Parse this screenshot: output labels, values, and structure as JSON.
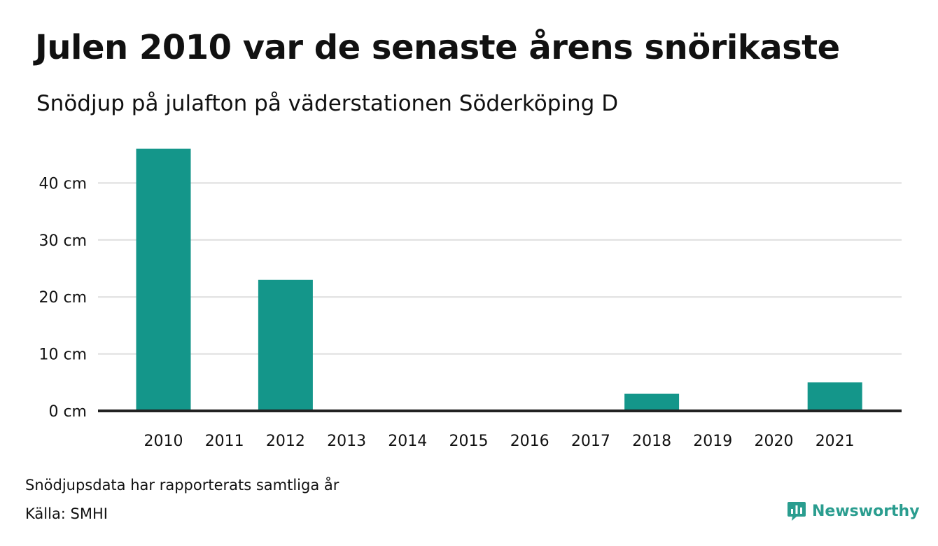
{
  "header": {
    "title": "Julen 2010 var de senaste årens snörikaste",
    "subtitle": "Snödjup på julafton på väderstationen Söderköping D"
  },
  "footer": {
    "note": "Snödjupsdata har rapporterats samtliga år",
    "source": "Källa: SMHI",
    "logo_text": "Newsworthy"
  },
  "colors": {
    "bar": "#14968a",
    "grid": "#dddddd",
    "baseline": "#222222",
    "logo": "#2a9d8f"
  },
  "chart_data": {
    "type": "bar",
    "categories": [
      "2010",
      "2011",
      "2012",
      "2013",
      "2014",
      "2015",
      "2016",
      "2017",
      "2018",
      "2019",
      "2020",
      "2021"
    ],
    "values": [
      46,
      0,
      23,
      0,
      0,
      0,
      0,
      0,
      3,
      0,
      0,
      5
    ],
    "yticks": [
      0,
      10,
      20,
      30,
      40
    ],
    "ytick_labels": [
      "0 cm",
      "10 cm",
      "20 cm",
      "30 cm",
      "40 cm"
    ],
    "ylim": [
      0,
      50
    ],
    "grid": true,
    "legend": "none"
  }
}
